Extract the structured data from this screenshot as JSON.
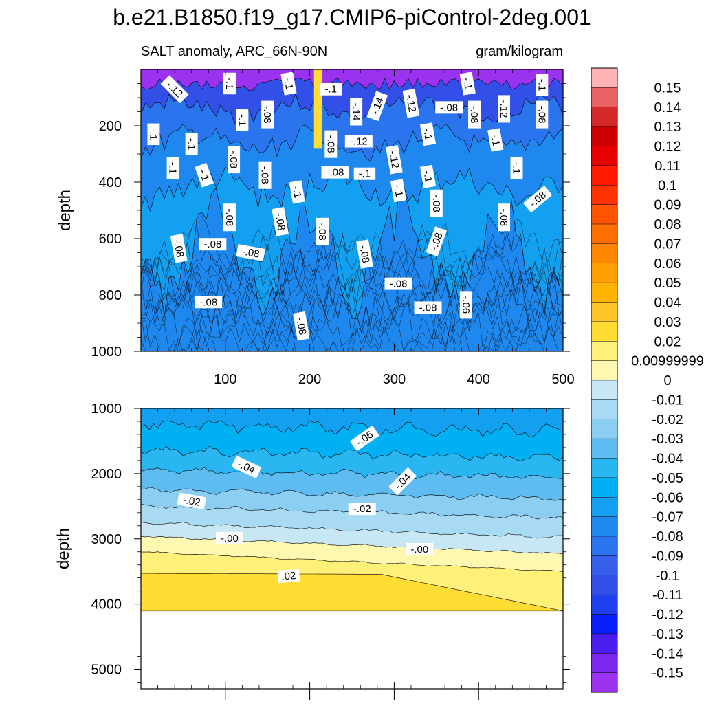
{
  "chart_data": {
    "type": "heatmap",
    "title": "b.e21.B1850.f19_g17.CMIP6-piControl-2deg.001",
    "subtitle_left": "SALT anomaly, ARC_66N-90N",
    "subtitle_right": "gram/kilogram",
    "panels": [
      {
        "name": "upper",
        "ylabel": "depth",
        "ylim": [
          1000,
          0
        ],
        "xlim": [
          0,
          500
        ],
        "x_ticks": [
          "100",
          "200",
          "300",
          "400",
          "500"
        ],
        "y_ticks": [
          "200",
          "400",
          "600",
          "800",
          "1000"
        ],
        "contour_labels": [
          {
            "text": "-.12",
            "x": 40,
            "y": 70,
            "rot": 45
          },
          {
            "text": "-.1",
            "x": 105,
            "y": 50,
            "rot": 90
          },
          {
            "text": "-.1",
            "x": 175,
            "y": 50,
            "rot": 80
          },
          {
            "text": "-.1",
            "x": 225,
            "y": 70,
            "rot": 0
          },
          {
            "text": "-.14",
            "x": 255,
            "y": 150,
            "rot": 90
          },
          {
            "text": "-.14",
            "x": 280,
            "y": 130,
            "rot": -70
          },
          {
            "text": "-.12",
            "x": 320,
            "y": 120,
            "rot": 80
          },
          {
            "text": "-.08",
            "x": 365,
            "y": 135,
            "rot": 0
          },
          {
            "text": "-.1",
            "x": 387,
            "y": 50,
            "rot": 80
          },
          {
            "text": "-.08",
            "x": 395,
            "y": 160,
            "rot": 90
          },
          {
            "text": "-.12",
            "x": 430,
            "y": 140,
            "rot": 90
          },
          {
            "text": "-.1",
            "x": 475,
            "y": 55,
            "rot": 90
          },
          {
            "text": "-.08",
            "x": 475,
            "y": 160,
            "rot": 90
          },
          {
            "text": "-.1",
            "x": 15,
            "y": 230,
            "rot": 90
          },
          {
            "text": "-.1",
            "x": 60,
            "y": 265,
            "rot": 90
          },
          {
            "text": "-.1",
            "x": 120,
            "y": 180,
            "rot": 90
          },
          {
            "text": "-.08",
            "x": 150,
            "y": 160,
            "rot": 90
          },
          {
            "text": "-.08",
            "x": 110,
            "y": 320,
            "rot": 90
          },
          {
            "text": "-.1",
            "x": 38,
            "y": 350,
            "rot": 90
          },
          {
            "text": "-.1",
            "x": 75,
            "y": 375,
            "rot": 70
          },
          {
            "text": "-.08",
            "x": 147,
            "y": 375,
            "rot": 90
          },
          {
            "text": "-.1",
            "x": 185,
            "y": 435,
            "rot": 80
          },
          {
            "text": "-.08",
            "x": 225,
            "y": 265,
            "rot": 90
          },
          {
            "text": "-.12",
            "x": 258,
            "y": 255,
            "rot": 0
          },
          {
            "text": "-.08",
            "x": 230,
            "y": 365,
            "rot": 0
          },
          {
            "text": "-.1",
            "x": 265,
            "y": 370,
            "rot": 0
          },
          {
            "text": "-.12",
            "x": 300,
            "y": 320,
            "rot": 80
          },
          {
            "text": "-.1",
            "x": 340,
            "y": 230,
            "rot": 80
          },
          {
            "text": "-.1",
            "x": 305,
            "y": 430,
            "rot": 80
          },
          {
            "text": "-.1",
            "x": 340,
            "y": 380,
            "rot": 80
          },
          {
            "text": "-.1",
            "x": 420,
            "y": 250,
            "rot": 80
          },
          {
            "text": "-.1",
            "x": 445,
            "y": 350,
            "rot": 90
          },
          {
            "text": "-.08",
            "x": 350,
            "y": 475,
            "rot": 90
          },
          {
            "text": "-.08",
            "x": 470,
            "y": 460,
            "rot": -40
          },
          {
            "text": "-.08",
            "x": 105,
            "y": 525,
            "rot": 90
          },
          {
            "text": "-.08",
            "x": 165,
            "y": 540,
            "rot": 80
          },
          {
            "text": "-.08",
            "x": 430,
            "y": 525,
            "rot": 90
          },
          {
            "text": "-.08",
            "x": 215,
            "y": 575,
            "rot": 90
          },
          {
            "text": "-.08",
            "x": 350,
            "y": 610,
            "rot": -70
          },
          {
            "text": "-.08",
            "x": 45,
            "y": 635,
            "rot": 80
          },
          {
            "text": "-.08",
            "x": 85,
            "y": 620,
            "rot": 0
          },
          {
            "text": "-.08",
            "x": 130,
            "y": 650,
            "rot": 10
          },
          {
            "text": "-.08",
            "x": 265,
            "y": 655,
            "rot": 80
          },
          {
            "text": "-.08",
            "x": 305,
            "y": 760,
            "rot": 0
          },
          {
            "text": "-.08",
            "x": 80,
            "y": 825,
            "rot": 0
          },
          {
            "text": "-.08",
            "x": 340,
            "y": 845,
            "rot": 0
          },
          {
            "text": "-.06",
            "x": 385,
            "y": 835,
            "rot": 90
          },
          {
            "text": "-.08",
            "x": 190,
            "y": 910,
            "rot": 80
          }
        ]
      },
      {
        "name": "lower",
        "ylabel": "depth",
        "ylim": [
          5300,
          1000
        ],
        "xlim": [
          0,
          500
        ],
        "y_ticks": [
          "1000",
          "2000",
          "3000",
          "4000",
          "5000"
        ],
        "bottom_depth": 4110,
        "contour_labels": [
          {
            "text": "-.06",
            "x": 265,
            "y": 1460,
            "rot": -35
          },
          {
            "text": "-.04",
            "x": 125,
            "y": 1900,
            "rot": 25
          },
          {
            "text": "-.04",
            "x": 310,
            "y": 2120,
            "rot": -45
          },
          {
            "text": "-.02",
            "x": 60,
            "y": 2420,
            "rot": 10
          },
          {
            "text": "-.02",
            "x": 262,
            "y": 2540,
            "rot": 0
          },
          {
            "text": "-.00",
            "x": 105,
            "y": 2990,
            "rot": 0
          },
          {
            "text": "-.00",
            "x": 330,
            "y": 3160,
            "rot": 0
          },
          {
            "text": ".02",
            "x": 175,
            "y": 3570,
            "rot": -5
          }
        ]
      }
    ],
    "colorbar": {
      "labels": [
        "0.15",
        "0.14",
        "0.13",
        "0.12",
        "0.11",
        "0.1",
        "0.09",
        "0.08",
        "0.07",
        "0.06",
        "0.05",
        "0.04",
        "0.03",
        "0.02",
        "0.00999999",
        "0",
        "-0.01",
        "-0.02",
        "-0.03",
        "-0.04",
        "-0.05",
        "-0.06",
        "-0.07",
        "-0.08",
        "-0.09",
        "-0.1",
        "-0.11",
        "-0.12",
        "-0.13",
        "-0.14",
        "-0.15"
      ],
      "colors": [
        "#ffb3b3",
        "#e86464",
        "#d42828",
        "#cc0000",
        "#e60000",
        "#ff1a00",
        "#ff3300",
        "#ff5500",
        "#ff6f00",
        "#ff8800",
        "#ffa000",
        "#ffb300",
        "#ffc42a",
        "#ffdd33",
        "#fff07a",
        "#fff8b0",
        "#c8e7f5",
        "#a8daf3",
        "#8ccdf2",
        "#5fbcf1",
        "#2ab6f1",
        "#00b0f2",
        "#14a0f0",
        "#1e88ef",
        "#2a74ee",
        "#3660ec",
        "#3250e8",
        "#2040f0",
        "#0a20f8",
        "#4a1df0",
        "#7a28ee",
        "#9a32ef"
      ]
    },
    "upper_fill_colors": [
      "#9a32ef",
      "#3250e8",
      "#2a74ee",
      "#1e88ef",
      "#14a0f0",
      "#00b0f2"
    ],
    "lower_fill_colors": [
      "#14a0f0",
      "#00b0f2",
      "#2ab6f1",
      "#5fbcf1",
      "#8ccdf2",
      "#a8daf3",
      "#c8e7f5",
      "#fff8b0",
      "#fff07a",
      "#ffdd33"
    ]
  }
}
